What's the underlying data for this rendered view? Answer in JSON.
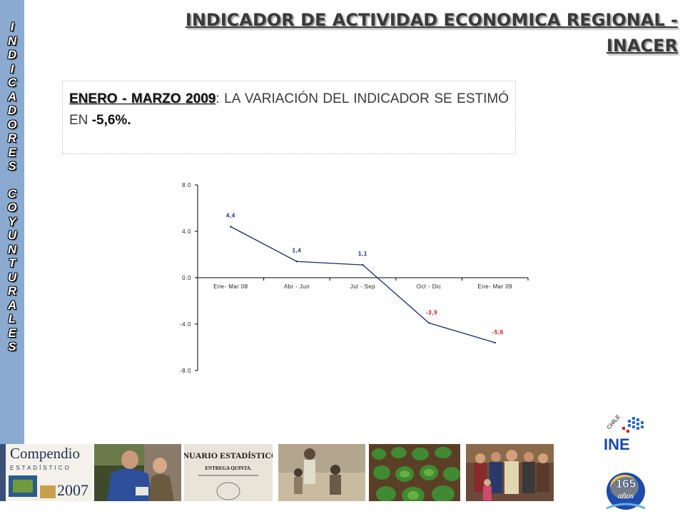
{
  "sidebar": {
    "letters": [
      "I",
      "N",
      "D",
      "I",
      "C",
      "A",
      "D",
      "O",
      "R",
      "E",
      "S",
      "",
      "C",
      "O",
      "Y",
      "U",
      "N",
      "T",
      "U",
      "R",
      "A",
      "L",
      "E",
      "S"
    ]
  },
  "header": {
    "title_line1": "INDICADOR DE ACTIVIDAD ECONOMICA REGIONAL -",
    "title_line2": "INACER"
  },
  "note": {
    "period": "ENERO - MARZO 2009",
    "text": ": LA VARIACIÓN DEL INDICADOR SE ESTIMÓ EN",
    "value": "-5,6%."
  },
  "chart_data": {
    "type": "line",
    "categories": [
      "Ene- Mar 08",
      "Abr - Jun",
      "Jul - Sep",
      "Oct - Dic",
      "Ene- Mar 09"
    ],
    "values": [
      4.4,
      1.4,
      1.1,
      -3.9,
      -5.6
    ],
    "data_labels": [
      "4,4",
      "1,4",
      "1,1",
      "-3,9",
      "-5,6"
    ],
    "y_ticks": [
      "8.0",
      "4.0",
      "0.0",
      "-4.0",
      "-8.0"
    ],
    "ylim": [
      -8,
      8
    ],
    "title": "",
    "xlabel": "",
    "ylabel": "",
    "line_color": "#1a2a6c",
    "label_color_positive": "#1a2a6c",
    "label_color_negative": "#cc1111"
  },
  "footer": {
    "compendio_title": "Compendio",
    "compendio_sub": "ESTADÍSTICO",
    "compendio_year": "2007",
    "anuario_title": "ANUARIO ESTADÍSTICO.",
    "anuario_sub": "ENTREGA QUINTA.",
    "ine_chile": "CHILE",
    "ine_name": "INE",
    "anniversary_number": "165",
    "anniversary_word": "años"
  },
  "colors": {
    "sidebar_band": "#8aaad0",
    "title_text": "#3a3a3a"
  }
}
